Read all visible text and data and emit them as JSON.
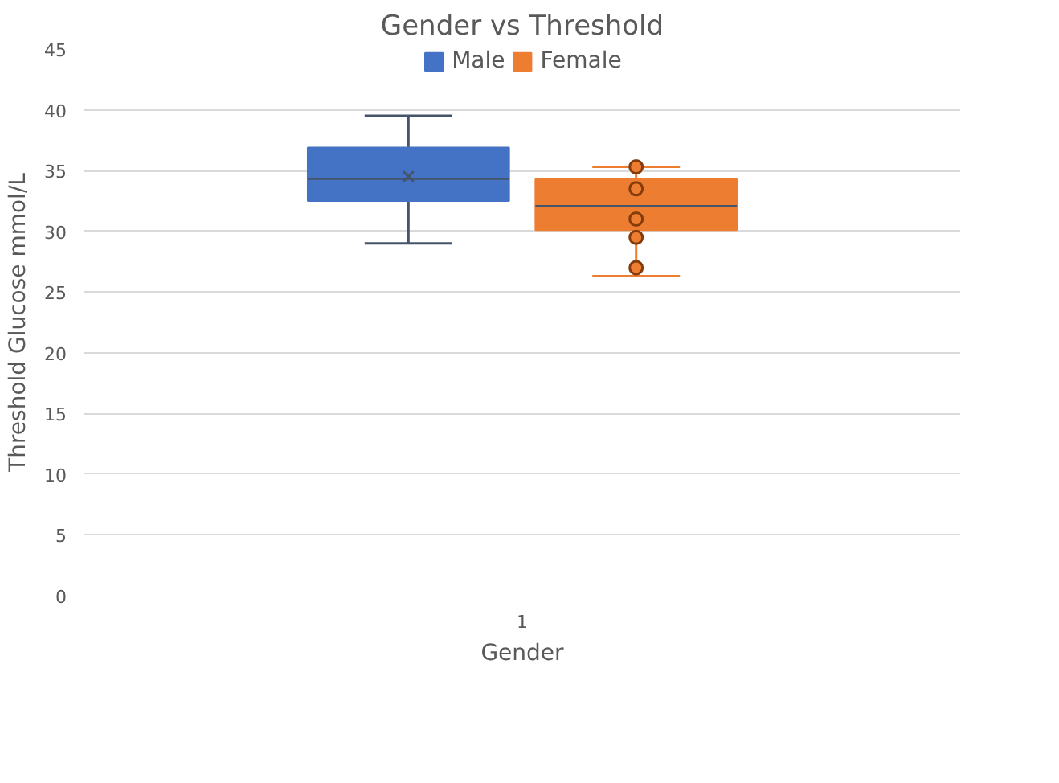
{
  "chart_data": {
    "type": "box",
    "title": "Gender vs Threshold",
    "xlabel": "Gender",
    "ylabel": "Threshold Glucose mmol/L",
    "categories": [
      "1"
    ],
    "series": [
      {
        "name": "Male",
        "color": "#4472c4",
        "boxes": [
          {
            "low": 29.0,
            "q1": 32.5,
            "median": 34.3,
            "q3": 36.9,
            "high": 39.5,
            "mean": 34.5
          }
        ]
      },
      {
        "name": "Female",
        "color": "#ed7d31",
        "boxes": [
          {
            "low": 26.3,
            "q1": 30.1,
            "median": 32.1,
            "q3": 34.3,
            "high": 35.3
          }
        ]
      },
      {
        "type": "scatter",
        "color": "#ed7d31",
        "x": [
          "1",
          "1",
          "1",
          "1",
          "1"
        ],
        "values": [
          35.3,
          33.5,
          31.0,
          29.5,
          27.0
        ]
      }
    ],
    "ylim": [
      0,
      45
    ],
    "yticks": [
      0,
      5,
      10,
      15,
      20,
      25,
      30,
      35,
      40,
      45
    ],
    "grid": "y",
    "legend": "top",
    "marker": "circle"
  }
}
